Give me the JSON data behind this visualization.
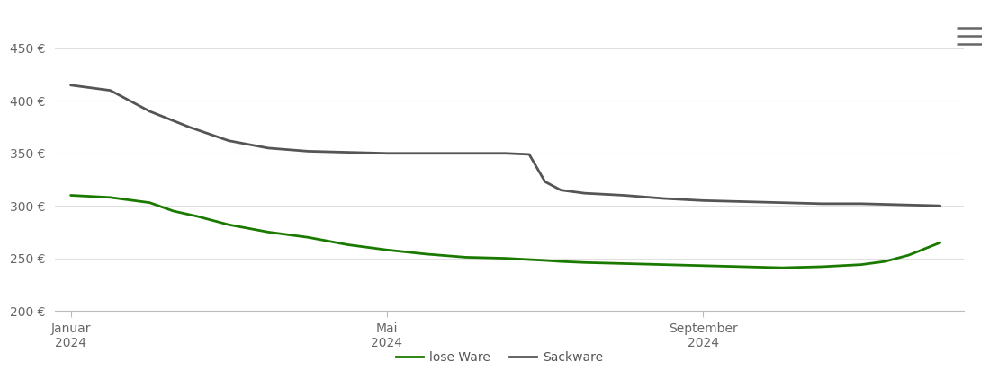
{
  "background_color": "#ffffff",
  "grid_color": "#e0e0e0",
  "ylim": [
    200,
    460
  ],
  "yticks": [
    200,
    250,
    300,
    350,
    400,
    450
  ],
  "ytick_labels": [
    "200 €",
    "250 €",
    "300 €",
    "350 €",
    "400 €",
    "450 €"
  ],
  "xtick_labels": [
    "Januar\n2024",
    "Mai\n2024",
    "September\n2024"
  ],
  "xtick_positions": [
    0,
    4,
    8
  ],
  "xlim": [
    -0.2,
    11.3
  ],
  "lose_ware_color": "#1a7a00",
  "sackware_color": "#555555",
  "line_width": 2.0,
  "legend_lose": "lose Ware",
  "legend_sack": "Sackware",
  "lose_ware_x": [
    0,
    0.5,
    1,
    1.3,
    1.6,
    2,
    2.5,
    3,
    3.5,
    4,
    4.5,
    5,
    5.5,
    6,
    6.2,
    6.5,
    7,
    7.5,
    8,
    8.5,
    9,
    9.5,
    10,
    10.3,
    10.6,
    11
  ],
  "lose_ware_y": [
    310,
    308,
    303,
    295,
    290,
    282,
    275,
    270,
    263,
    258,
    254,
    251,
    250,
    248,
    247,
    246,
    245,
    244,
    243,
    242,
    241,
    242,
    244,
    247,
    253,
    265
  ],
  "sackware_x": [
    0,
    0.5,
    1,
    1.5,
    2,
    2.5,
    3,
    3.5,
    4,
    4.5,
    5,
    5.5,
    5.8,
    6.0,
    6.2,
    6.5,
    7,
    7.5,
    8,
    8.5,
    9,
    9.5,
    10,
    10.5,
    11
  ],
  "sackware_y": [
    415,
    410,
    390,
    375,
    362,
    355,
    352,
    351,
    350,
    350,
    350,
    350,
    349,
    323,
    315,
    312,
    310,
    307,
    305,
    304,
    303,
    302,
    302,
    301,
    300
  ]
}
